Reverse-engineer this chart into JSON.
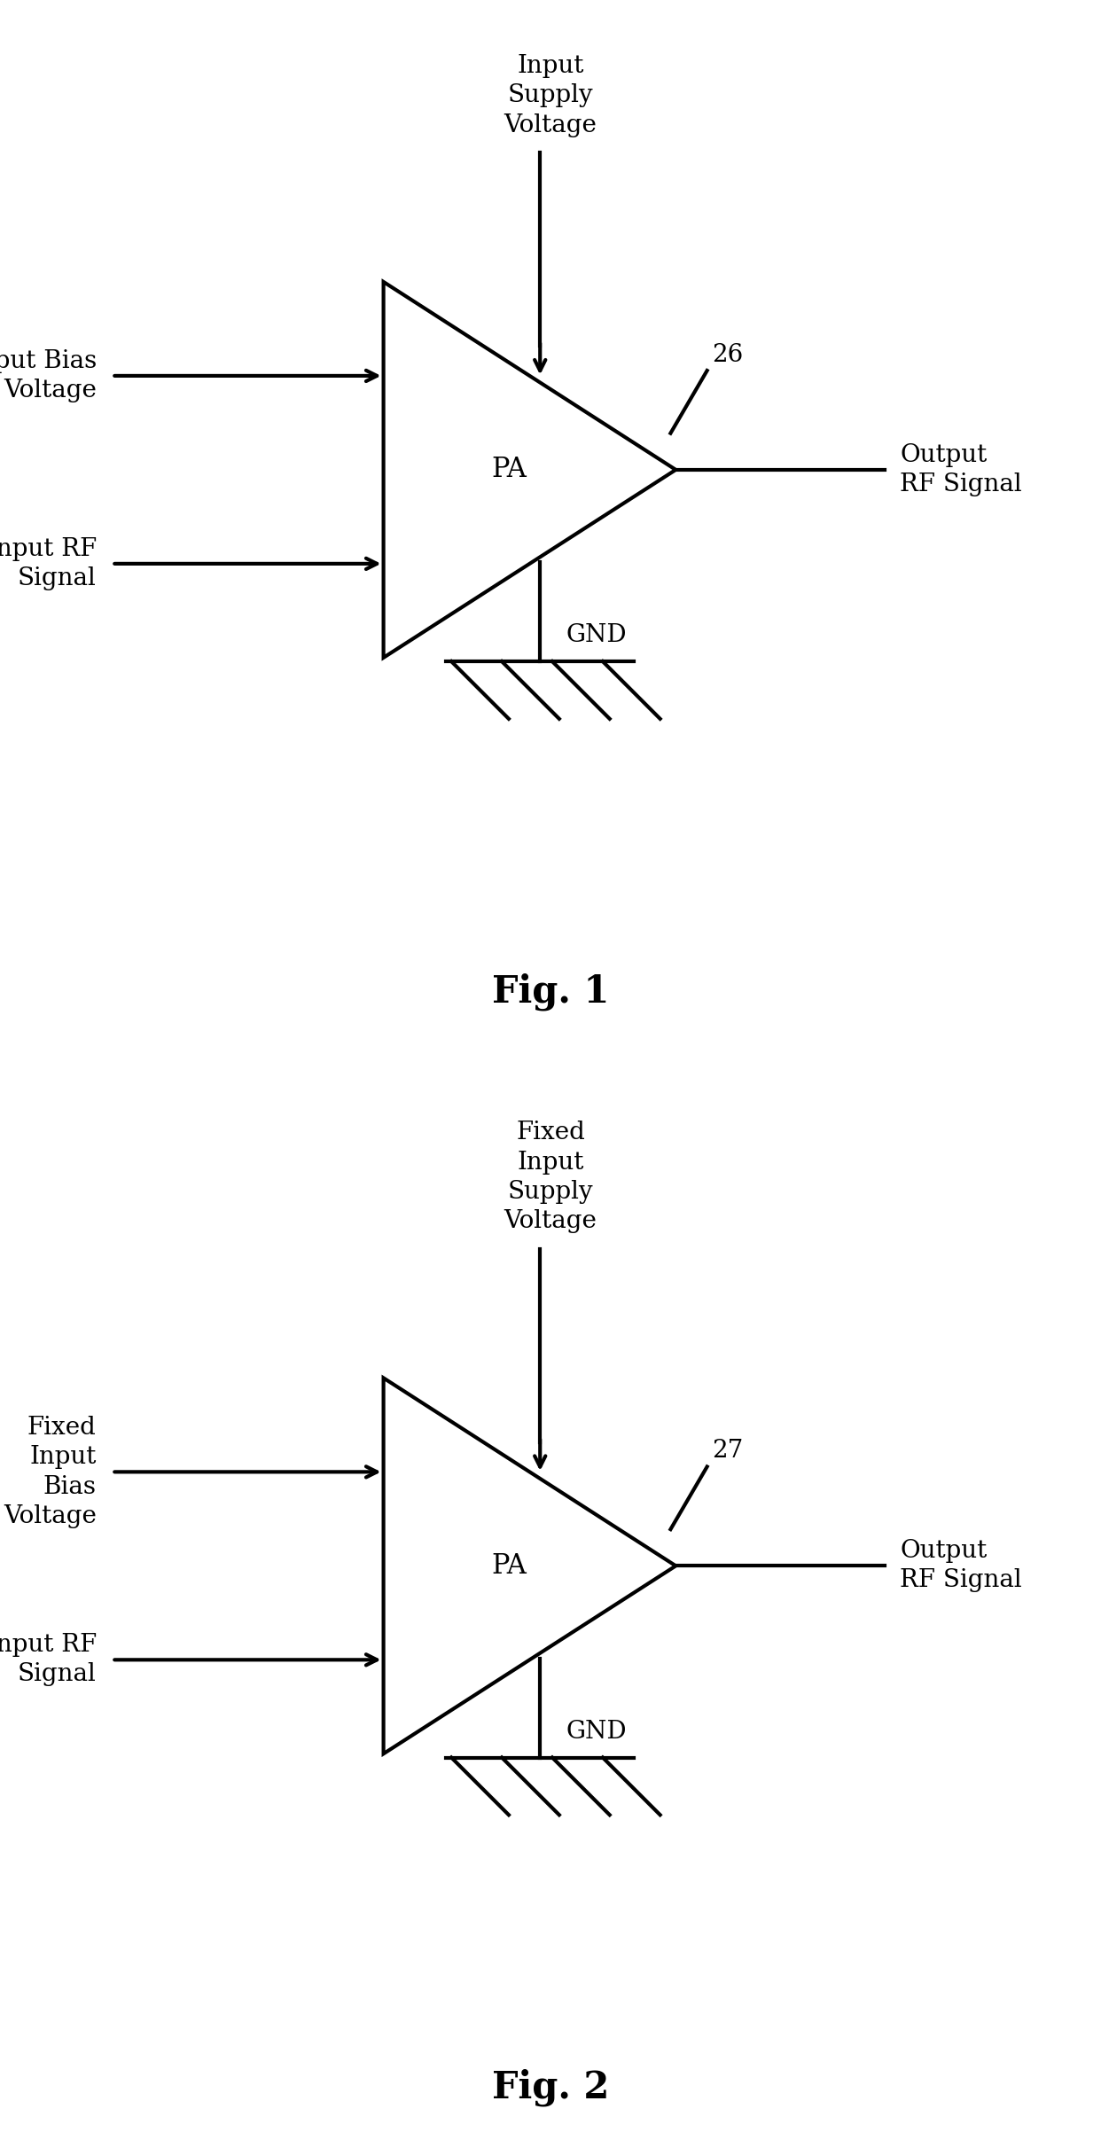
{
  "fig1": {
    "label": "Fig. 1",
    "node_label": "26",
    "top_label": "Input\nSupply\nVoltage",
    "left_top_label": "Input Bias\nVoltage",
    "left_bot_label": "Input RF\nSignal",
    "right_label": "Output\nRF Signal",
    "bot_label": "GND",
    "pa_label": "PA"
  },
  "fig2": {
    "label": "Fig. 2",
    "node_label": "27",
    "top_label": "Fixed\nInput\nSupply\nVoltage",
    "left_top_label": "Fixed\nInput\nBias\nVoltage",
    "left_bot_label": "Input RF\nSignal",
    "right_label": "Output\nRF Signal",
    "bot_label": "GND",
    "pa_label": "PA"
  },
  "line_color": "#000000",
  "lw": 3.0,
  "font_size": 20,
  "label_font_size": 30,
  "background": "#ffffff"
}
